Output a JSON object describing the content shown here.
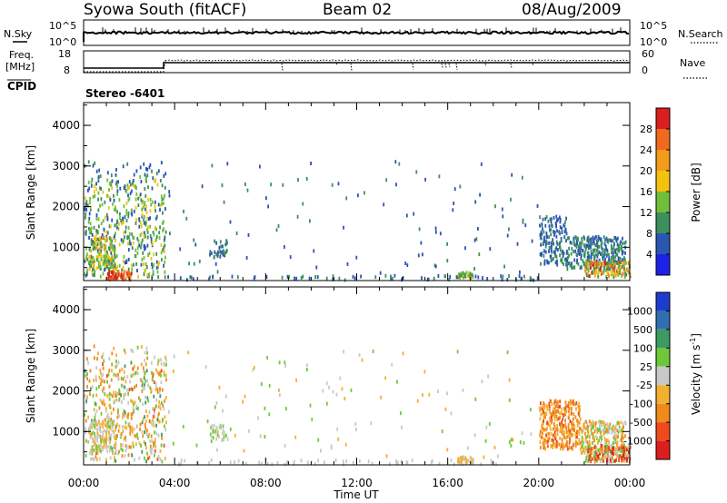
{
  "header": {
    "station": "Syowa South (fitACF)",
    "beam": "Beam 02",
    "date": "08/Aug/2009"
  },
  "summary_panels": {
    "nsky_label": "N.Sky",
    "nsky_ticks": [
      "10^5",
      "10^0"
    ],
    "nsearch_label": "N.Search",
    "nsearch_ticks": [
      "10^5",
      "10^0"
    ],
    "freq_label": "Freq.",
    "freq_unit": "[MHz]",
    "freq_ticks": [
      "18",
      "8"
    ],
    "nave_label": "Nave",
    "nave_ticks": [
      "60",
      "0"
    ],
    "cpid_label": "CPID",
    "cpid_value": "Stereo -6401"
  },
  "colors": {
    "power_scale": [
      "#1e22e6",
      "#2a55b0",
      "#3d8f5e",
      "#6fbf3a",
      "#f3c20f",
      "#f39b1a",
      "#ef6a1c",
      "#dc1e1e"
    ],
    "velocity_scale": [
      "#dc1e1e",
      "#ef4a1c",
      "#f08a1a",
      "#f3b030",
      "#c8c8c8",
      "#6ec93a",
      "#3d9a62",
      "#2f6fb0",
      "#1e3ccc"
    ]
  },
  "chart_data": [
    {
      "type": "heatmap",
      "name": "power-panel",
      "ylabel": "Slant Range [km]",
      "xlabel": "",
      "x_range_hours": [
        0,
        24
      ],
      "ylim": [
        180,
        4560
      ],
      "y_ticks": [
        "1000",
        "2000",
        "3000",
        "4000"
      ],
      "colorbar": {
        "label": "Power [dB]",
        "ticks": [
          "28",
          "24",
          "20",
          "16",
          "12",
          "8",
          "4"
        ],
        "range": [
          0,
          32
        ]
      },
      "clusters": [
        {
          "t": [
            0.0,
            3.6
          ],
          "r": [
            300,
            2800
          ],
          "density": 0.18,
          "value": [
            4,
            18
          ]
        },
        {
          "t": [
            0.0,
            3.6
          ],
          "r": [
            2800,
            3150
          ],
          "density": 0.06,
          "value": [
            4,
            12
          ]
        },
        {
          "t": [
            1.0,
            2.1
          ],
          "r": [
            230,
            450
          ],
          "density": 0.7,
          "value": [
            24,
            31
          ]
        },
        {
          "t": [
            0.2,
            1.4
          ],
          "r": [
            500,
            1300
          ],
          "density": 0.4,
          "value": [
            8,
            22
          ]
        },
        {
          "t": [
            3.6,
            20.0
          ],
          "r": [
            230,
            350
          ],
          "density": 0.12,
          "value": [
            4,
            10
          ]
        },
        {
          "t": [
            3.6,
            20.0
          ],
          "r": [
            350,
            3150
          ],
          "density": 0.008,
          "value": [
            4,
            12
          ]
        },
        {
          "t": [
            5.5,
            6.3
          ],
          "r": [
            800,
            1200
          ],
          "density": 0.35,
          "value": [
            4,
            12
          ]
        },
        {
          "t": [
            16.4,
            17.1
          ],
          "r": [
            260,
            420
          ],
          "density": 0.7,
          "value": [
            8,
            20
          ]
        },
        {
          "t": [
            20.0,
            21.2
          ],
          "r": [
            600,
            1800
          ],
          "density": 0.3,
          "value": [
            4,
            10
          ]
        },
        {
          "t": [
            21.2,
            23.8
          ],
          "r": [
            500,
            1300
          ],
          "density": 0.45,
          "value": [
            4,
            12
          ]
        },
        {
          "t": [
            22.0,
            24.0
          ],
          "r": [
            300,
            700
          ],
          "density": 0.6,
          "value": [
            8,
            30
          ]
        }
      ]
    },
    {
      "type": "heatmap",
      "name": "velocity-panel",
      "ylabel": "Slant Range [km]",
      "xlabel": "Time UT",
      "x_range_hours": [
        0,
        24
      ],
      "x_ticks": [
        "00:00",
        "04:00",
        "08:00",
        "12:00",
        "16:00",
        "20:00",
        "00:00"
      ],
      "ylim": [
        180,
        4560
      ],
      "y_ticks": [
        "1000",
        "2000",
        "3000",
        "4000"
      ],
      "colorbar": {
        "label": "Velocity [m s",
        "label_sup": "-1",
        "label_end": "]",
        "ticks": [
          "1000",
          "500",
          "100",
          "25",
          "-25",
          "-100",
          "-500",
          "-1000"
        ],
        "range": [
          -1000,
          1000
        ]
      },
      "clusters": [
        {
          "t": [
            0.0,
            3.6
          ],
          "r": [
            300,
            2800
          ],
          "density": 0.18,
          "value": [
            -600,
            400
          ]
        },
        {
          "t": [
            0.0,
            3.6
          ],
          "r": [
            2800,
            3150
          ],
          "density": 0.06,
          "value": [
            -500,
            200
          ]
        },
        {
          "t": [
            0.2,
            1.4
          ],
          "r": [
            500,
            1300
          ],
          "density": 0.4,
          "value": [
            -300,
            200
          ]
        },
        {
          "t": [
            3.6,
            20.0
          ],
          "r": [
            230,
            350
          ],
          "density": 0.1,
          "value": [
            -100,
            100
          ]
        },
        {
          "t": [
            3.6,
            20.0
          ],
          "r": [
            350,
            3150
          ],
          "density": 0.008,
          "value": [
            -300,
            300
          ]
        },
        {
          "t": [
            5.5,
            6.3
          ],
          "r": [
            800,
            1200
          ],
          "density": 0.35,
          "value": [
            -100,
            300
          ]
        },
        {
          "t": [
            16.4,
            17.1
          ],
          "r": [
            260,
            420
          ],
          "density": 0.7,
          "value": [
            -300,
            0
          ]
        },
        {
          "t": [
            20.0,
            21.8
          ],
          "r": [
            600,
            1800
          ],
          "density": 0.45,
          "value": [
            -700,
            -150
          ]
        },
        {
          "t": [
            21.8,
            23.8
          ],
          "r": [
            500,
            1300
          ],
          "density": 0.45,
          "value": [
            -500,
            300
          ]
        },
        {
          "t": [
            22.0,
            24.0
          ],
          "r": [
            300,
            700
          ],
          "density": 0.6,
          "value": [
            -1000,
            400
          ]
        }
      ]
    }
  ]
}
